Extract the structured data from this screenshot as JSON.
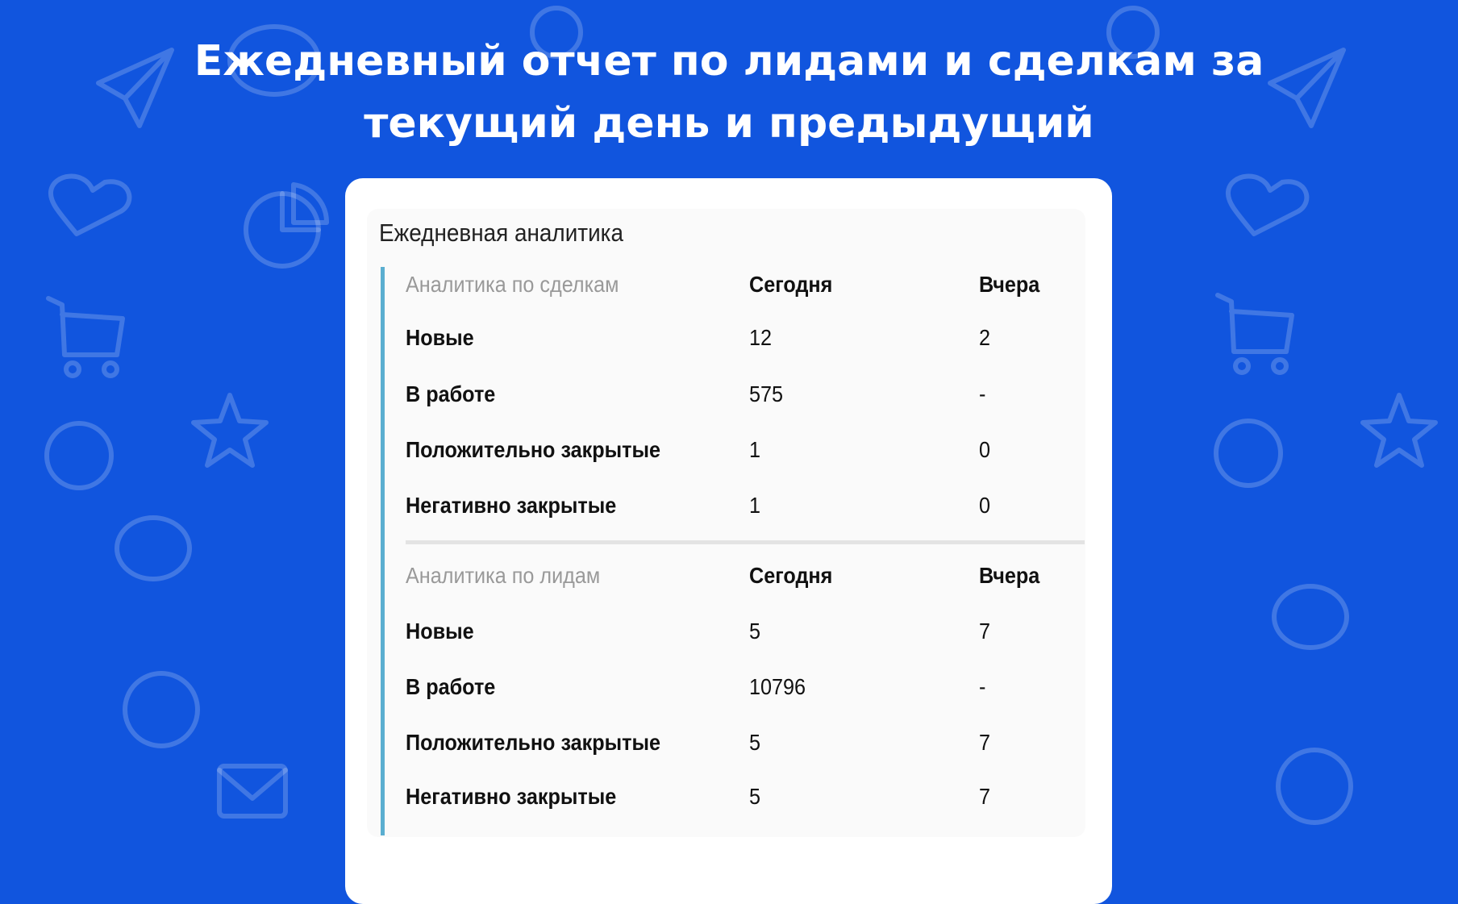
{
  "page_title": [
    "Ежедневный отчет по лидами и сделкам за",
    "текущий день и предыдущий"
  ],
  "colors": {
    "background": "#1155de",
    "accent_bar": "#5aaed0",
    "card": "#ffffff"
  },
  "widget": {
    "title": "Ежедневная аналитика",
    "sections": [
      {
        "header": [
          "Аналитика по сделкам",
          "Сегодня",
          "Вчера"
        ],
        "rows": [
          [
            "Новые",
            "12",
            "2"
          ],
          [
            "В работе",
            "575",
            "-"
          ],
          [
            "Положительно закрытые",
            "1",
            "0"
          ],
          [
            "Негативно закрытые",
            "1",
            "0"
          ]
        ]
      },
      {
        "header": [
          "Аналитика по лидам",
          "Сегодня",
          "Вчера"
        ],
        "rows": [
          [
            "Новые",
            "5",
            "7"
          ],
          [
            "В работе",
            "10796",
            "-"
          ],
          [
            "Положительно закрытые",
            "5",
            "7"
          ],
          [
            "Негативно закрытые",
            "5",
            "7"
          ]
        ]
      }
    ]
  }
}
